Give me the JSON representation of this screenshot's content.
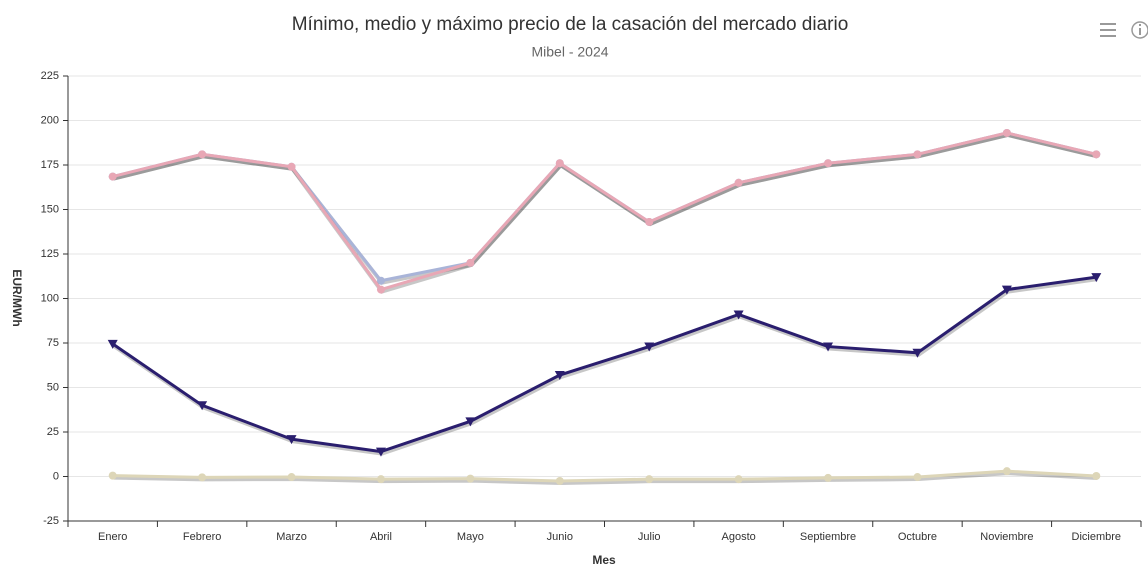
{
  "chart_data": {
    "type": "line",
    "title": "Mínimo, medio y máximo precio de la casación del mercado diario",
    "subtitle": "Mibel - 2024",
    "y_label": "EUR/MWh",
    "x_label": "Mes",
    "categories": [
      "Enero",
      "Febrero",
      "Marzo",
      "Abril",
      "Mayo",
      "Junio",
      "Julio",
      "Agosto",
      "Septiembre",
      "Octubre",
      "Noviembre",
      "Diciembre"
    ],
    "series": [
      {
        "color": "#a9b4d8",
        "marker": "circle",
        "values": [
          168.5,
          181,
          174,
          110,
          120,
          176,
          143,
          165,
          176,
          181,
          193,
          181
        ]
      },
      {
        "color": "#e8a7b5",
        "marker": "circle",
        "values": [
          168.5,
          181,
          174,
          105,
          120,
          176,
          143,
          165,
          176,
          181,
          193,
          181
        ]
      },
      {
        "color": "#2a1e6e",
        "marker": "triangle",
        "values": [
          74.5,
          40,
          21,
          14,
          31,
          57,
          73,
          91,
          73,
          69.5,
          105,
          112
        ]
      },
      {
        "color": "#ddd6b8",
        "marker": "circle",
        "values": [
          0.5,
          -0.5,
          -0.3,
          -1.5,
          -1.2,
          -2.5,
          -1.5,
          -1.5,
          -0.8,
          -0.3,
          3,
          0.3
        ]
      }
    ],
    "ylim": [
      -25,
      225
    ],
    "yticks": [
      -25,
      0,
      25,
      50,
      75,
      100,
      125,
      150,
      175,
      200,
      225
    ],
    "grid": true
  }
}
